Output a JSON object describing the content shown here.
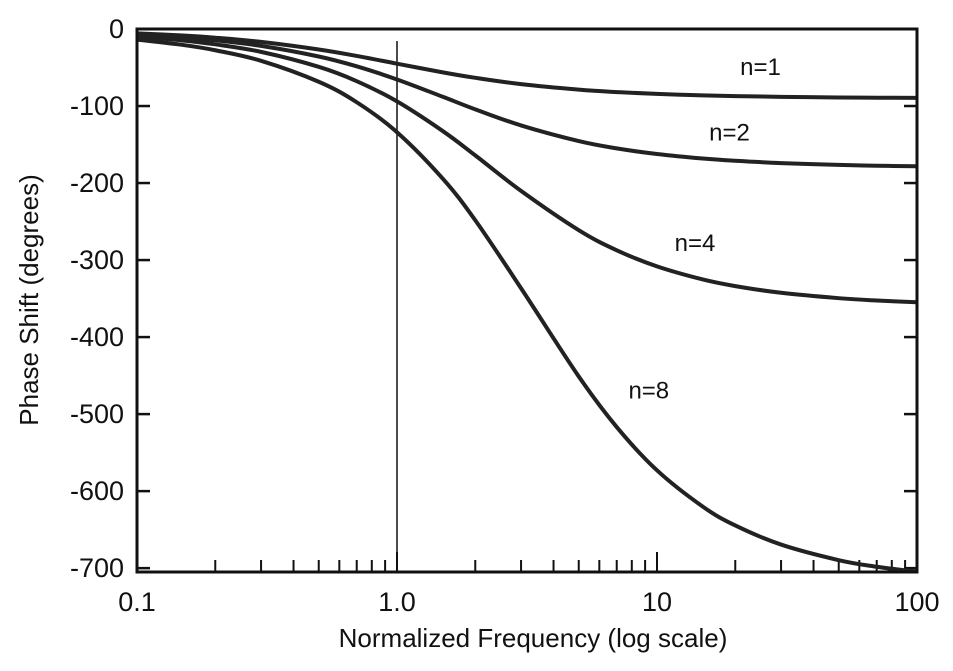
{
  "chart_data": {
    "type": "line",
    "title": "",
    "xlabel": "Normalized Frequency (log scale)",
    "ylabel": "Phase Shift (degrees)",
    "xscale": "log",
    "xlim": [
      0.1,
      100
    ],
    "ylim": [
      -705,
      0
    ],
    "grid": false,
    "legend": "none",
    "xticks": [
      0.1,
      1,
      10,
      100
    ],
    "xtick_labels": [
      "0.1",
      "1.0",
      "10",
      "100"
    ],
    "yticks": [
      0,
      -100,
      -200,
      -300,
      -400,
      -500,
      -600,
      -700
    ],
    "ytick_labels": [
      "0",
      "-100",
      "-200",
      "-300",
      "-400",
      "-500",
      "-600",
      "-700"
    ],
    "reference_line_x": 1.0,
    "x": [
      0.1,
      0.15,
      0.2,
      0.3,
      0.5,
      0.7,
      1,
      1.5,
      2,
      3,
      5,
      7,
      10,
      15,
      20,
      30,
      50,
      70,
      100
    ],
    "series": [
      {
        "name": "n=1",
        "values": [
          -5.7,
          -8.5,
          -11.3,
          -16.7,
          -26.6,
          -35.0,
          -45.0,
          -56.3,
          -63.4,
          -71.6,
          -78.7,
          -81.9,
          -84.3,
          -86.2,
          -87.1,
          -88.1,
          -88.9,
          -89.2,
          -89.4
        ]
      },
      {
        "name": "n=2",
        "values": [
          -7.4,
          -11.0,
          -14.7,
          -21.9,
          -35.7,
          -48.5,
          -65.5,
          -88.0,
          -104.3,
          -125.2,
          -145.5,
          -155.0,
          -162.3,
          -168.2,
          -171.1,
          -174.1,
          -176.4,
          -177.5,
          -178.2
        ]
      },
      {
        "name": "n=4",
        "values": [
          -10.0,
          -14.9,
          -19.9,
          -29.7,
          -49.1,
          -67.7,
          -94.0,
          -132.5,
          -164.1,
          -210.2,
          -261.2,
          -287.3,
          -308.2,
          -325.2,
          -333.8,
          -342.5,
          -349.5,
          -352.5,
          -354.7
        ]
      },
      {
        "name": "n=8",
        "values": [
          -13.8,
          -20.7,
          -27.6,
          -41.3,
          -68.5,
          -95.1,
          -134.0,
          -194.3,
          -248.3,
          -336.6,
          -451.1,
          -516.8,
          -573.0,
          -620.1,
          -644.6,
          -669.4,
          -689.6,
          -698.2,
          -704.8
        ]
      }
    ],
    "annotations": [
      {
        "text": "n=1",
        "x": 25,
        "y": -60
      },
      {
        "text": "n=2",
        "x": 19,
        "y": -145
      },
      {
        "text": "n=4",
        "x": 14,
        "y": -288
      },
      {
        "text": "n=8",
        "x": 9.3,
        "y": -480
      }
    ]
  }
}
